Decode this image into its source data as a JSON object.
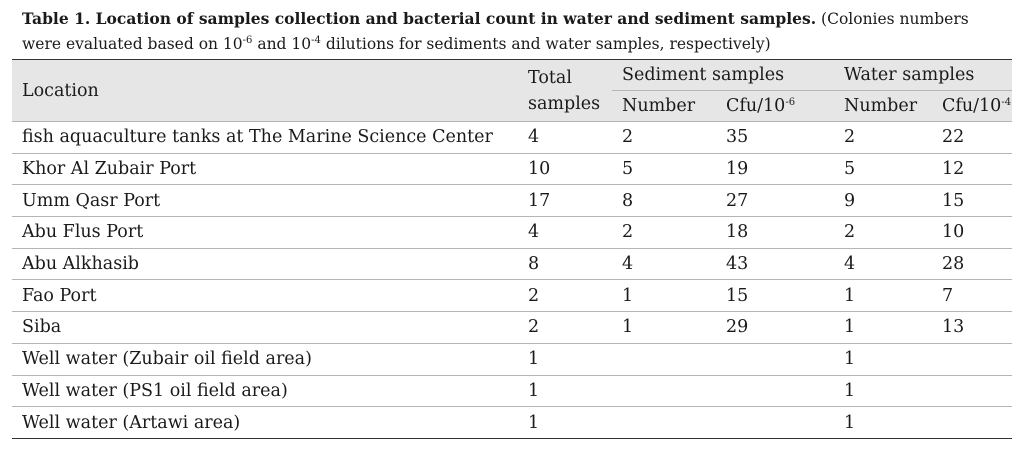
{
  "caption": {
    "title": "Table 1. Location of samples collection and bacterial count in water and sediment samples.",
    "note_a": " (Colonies numbers were evaluated based on 10",
    "note_sup1": "-6",
    "note_b": " and 10",
    "note_sup2": "-4",
    "note_c": " dilutions for sediments and water samples, respectively)"
  },
  "header": {
    "location": "Location",
    "total_line1": "Total",
    "total_line2": "samples",
    "sediment_group": "Sediment samples",
    "water_group": "Water samples",
    "sed_number": "Number",
    "sed_cfu": "Cfu/10",
    "sed_cfu_sup": "-6",
    "water_number": "Number",
    "water_cfu": "Cfu/10",
    "water_cfu_sup": "-4"
  },
  "rows": [
    {
      "location": "fish aquaculture tanks at The Marine Science Center",
      "total": "4",
      "sed_num": "2",
      "sed_cfu": "35",
      "wat_num": "2",
      "wat_cfu": "22"
    },
    {
      "location": "Khor Al Zubair Port",
      "total": "10",
      "sed_num": "5",
      "sed_cfu": "19",
      "wat_num": "5",
      "wat_cfu": "12"
    },
    {
      "location": "Umm Qasr Port",
      "total": "17",
      "sed_num": "8",
      "sed_cfu": "27",
      "wat_num": "9",
      "wat_cfu": "15"
    },
    {
      "location": "Abu Flus Port",
      "total": "4",
      "sed_num": "2",
      "sed_cfu": "18",
      "wat_num": "2",
      "wat_cfu": "10"
    },
    {
      "location": "Abu Alkhasib",
      "total": "8",
      "sed_num": "4",
      "sed_cfu": "43",
      "wat_num": "4",
      "wat_cfu": "28"
    },
    {
      "location": "Fao Port",
      "total": "2",
      "sed_num": "1",
      "sed_cfu": "15",
      "wat_num": "1",
      "wat_cfu": "7"
    },
    {
      "location": "Siba",
      "total": "2",
      "sed_num": "1",
      "sed_cfu": "29",
      "wat_num": "1",
      "wat_cfu": "13"
    },
    {
      "location": "Well water (Zubair oil field area)",
      "total": "1",
      "sed_num": "",
      "sed_cfu": "",
      "wat_num": "1",
      "wat_cfu": ""
    },
    {
      "location": "Well water (PS1 oil field area)",
      "total": "1",
      "sed_num": "",
      "sed_cfu": "",
      "wat_num": "1",
      "wat_cfu": ""
    },
    {
      "location": "Well water (Artawi area)",
      "total": "1",
      "sed_num": "",
      "sed_cfu": "",
      "wat_num": "1",
      "wat_cfu": ""
    }
  ]
}
